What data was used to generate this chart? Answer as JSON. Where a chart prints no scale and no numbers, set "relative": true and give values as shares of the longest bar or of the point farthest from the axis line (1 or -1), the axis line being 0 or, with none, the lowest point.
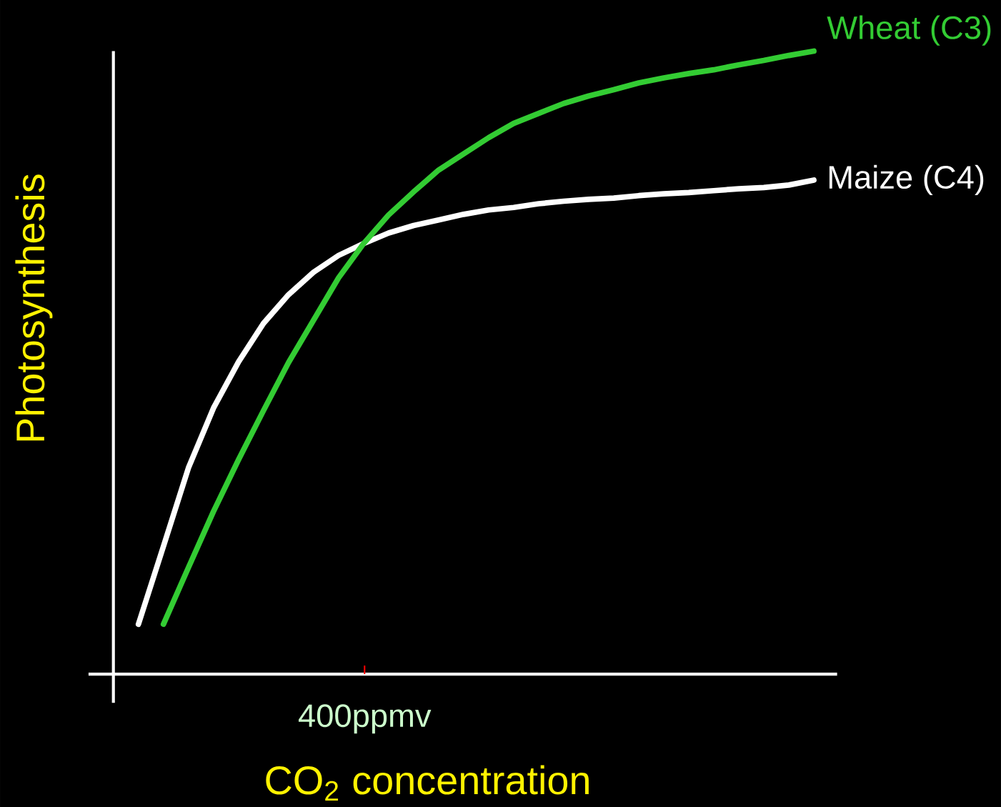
{
  "chart_data": {
    "type": "line",
    "relative": true,
    "xlabel": "CO$_{2}$ concentration",
    "ylabel": "Photosynthesis",
    "annotations": [
      "400ppmv"
    ],
    "categories": [
      null,
      null,
      null,
      null,
      null,
      null,
      null,
      null,
      null,
      null,
      null,
      null,
      null,
      null,
      null,
      null,
      null,
      null,
      null,
      null,
      null,
      null,
      null,
      null,
      null,
      null,
      null,
      null
    ],
    "series": [
      {
        "name": "Maize (C4)",
        "color": "#ffffff",
        "values": [
          0.08,
          0.205,
          0.331,
          0.427,
          0.501,
          0.563,
          0.609,
          0.645,
          0.672,
          0.691,
          0.708,
          0.72,
          0.729,
          0.738,
          0.745,
          0.749,
          0.755,
          0.759,
          0.762,
          0.764,
          0.768,
          0.771,
          0.773,
          0.776,
          0.779,
          0.781,
          0.785,
          0.793
        ]
      },
      {
        "name": "Wheat (C3)",
        "color": "#33cc33",
        "values": [
          null,
          0.08,
          0.171,
          0.261,
          0.344,
          0.423,
          0.5,
          0.568,
          0.636,
          0.691,
          0.737,
          0.774,
          0.809,
          0.835,
          0.861,
          0.884,
          0.9,
          0.916,
          0.928,
          0.938,
          0.949,
          0.957,
          0.964,
          0.97,
          0.978,
          0.985,
          0.993,
          1.0
        ]
      }
    ]
  }
}
